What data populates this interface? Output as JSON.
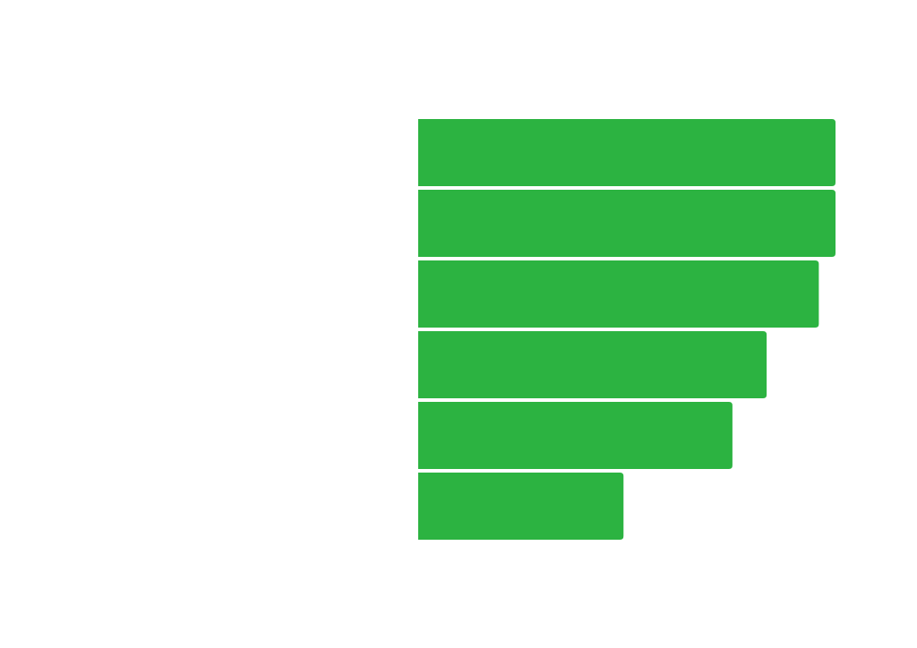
{
  "chart_data": {
    "type": "bar",
    "orientation": "horizontal",
    "values": [
      100,
      100,
      96,
      83.5,
      75.3,
      49.2
    ],
    "xlim": [
      0,
      100
    ],
    "grid": false,
    "legend": "none",
    "bar_color": "#2cb341",
    "background_color": "#ffffff"
  }
}
